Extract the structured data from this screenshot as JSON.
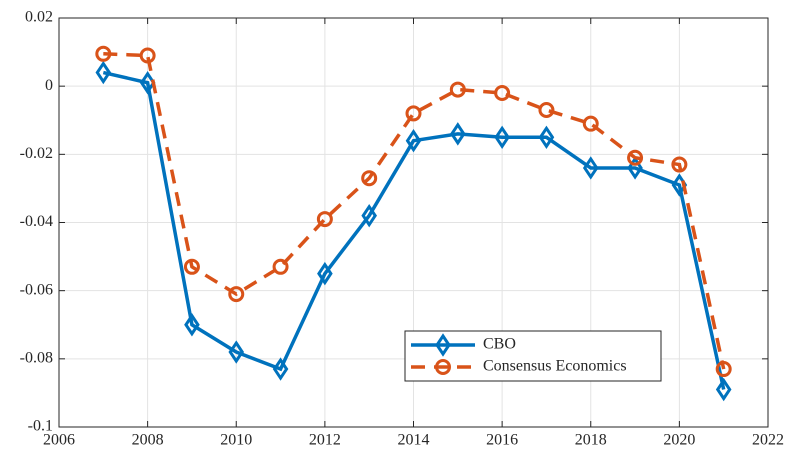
{
  "chart_data": {
    "type": "line",
    "x": [
      2007,
      2008,
      2009,
      2010,
      2011,
      2012,
      2013,
      2014,
      2015,
      2016,
      2017,
      2018,
      2019,
      2020,
      2021
    ],
    "series": [
      {
        "name": "CBO",
        "color": "#0072bd",
        "marker": "diamond",
        "line_style": "solid",
        "values": [
          0.004,
          0.001,
          -0.07,
          -0.078,
          -0.083,
          -0.055,
          -0.038,
          -0.016,
          -0.014,
          -0.015,
          -0.015,
          -0.024,
          -0.024,
          -0.029,
          -0.089
        ]
      },
      {
        "name": "Consensus Economics",
        "color": "#d95319",
        "marker": "circle",
        "line_style": "dashed",
        "values": [
          0.0095,
          0.009,
          -0.053,
          -0.061,
          -0.053,
          -0.039,
          -0.027,
          -0.008,
          -0.001,
          -0.002,
          -0.007,
          -0.011,
          -0.021,
          -0.023,
          -0.083
        ]
      }
    ],
    "xlim": [
      2006,
      2022
    ],
    "xticks": [
      2006,
      2008,
      2010,
      2012,
      2014,
      2016,
      2018,
      2020,
      2022
    ],
    "ylim": [
      -0.1,
      0.02
    ],
    "yticks": [
      -0.1,
      -0.08,
      -0.06,
      -0.04,
      -0.02,
      0,
      0.02
    ],
    "grid": true,
    "legend_loc": "lower right"
  }
}
